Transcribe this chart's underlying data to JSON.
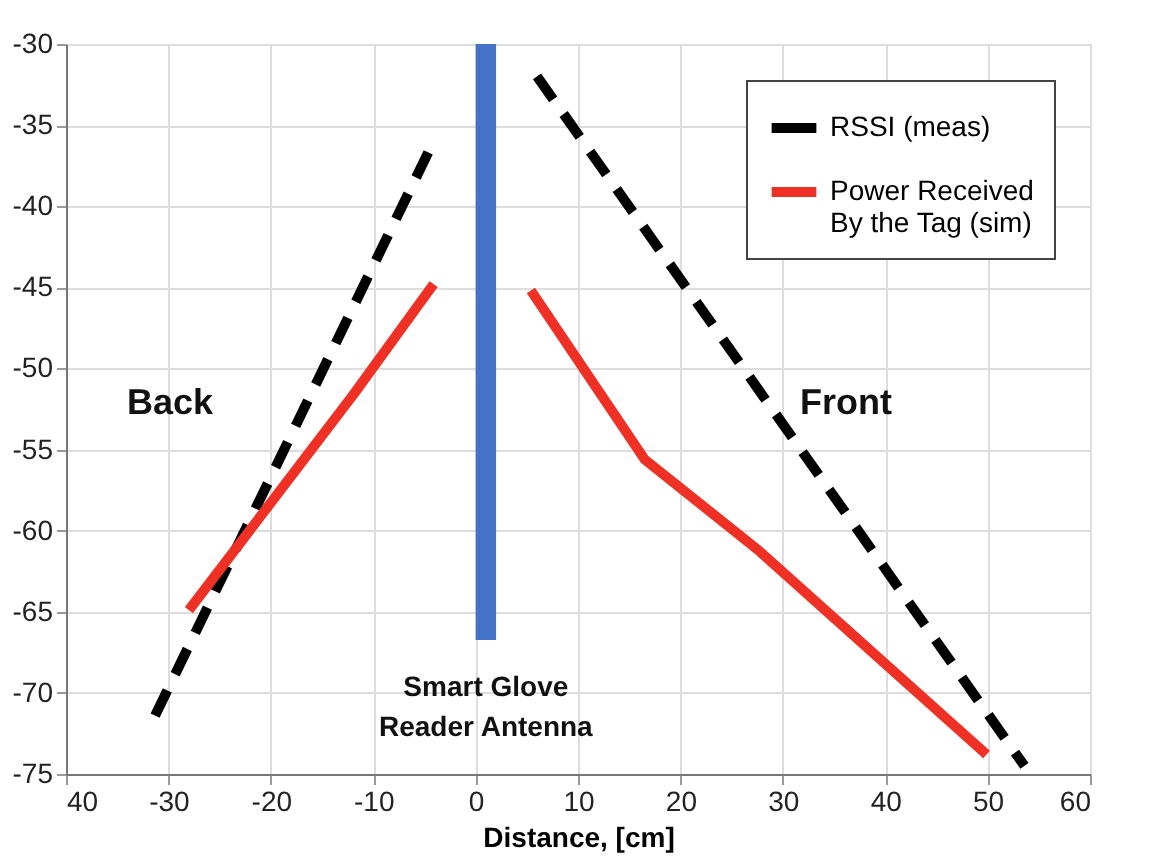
{
  "chart_data": {
    "type": "line",
    "xlabel": "Distance, [cm]",
    "xlim": [
      -40,
      60
    ],
    "xticks": [
      {
        "value": -40,
        "label": "40"
      },
      -30,
      -20,
      -10,
      0,
      10,
      20,
      30,
      40,
      50,
      60
    ],
    "ylim": [
      -75,
      -30
    ],
    "yticks": [
      -75,
      -70,
      -65,
      -60,
      -55,
      -50,
      -45,
      -40,
      -35,
      -30
    ],
    "grid": true,
    "legend": "top right",
    "series": [
      {
        "name": "RSSI (meas)",
        "color": "#000000",
        "line_style": "dashed",
        "x": [
          -31.3,
          -4.1,
          0,
          6.0,
          53.6
        ],
        "values": [
          -71.4,
          -36.0,
          null,
          -32.0,
          -74.5
        ]
      },
      {
        "name": "Power Received\nBy the Tag (sim)",
        "color": "#ee3124",
        "line_style": "solid",
        "x": [
          -28.0,
          -11.8,
          -4.1,
          0,
          5.4,
          16.5,
          27.6,
          49.9
        ],
        "values": [
          -64.9,
          -51.5,
          -44.8,
          null,
          -45.2,
          -55.6,
          -61.2,
          -73.8
        ]
      }
    ],
    "bands": [
      {
        "axis": "x",
        "from": 0,
        "to": 2,
        "label": "Smart Glove\nReader Antenna",
        "color": "#4472c4"
      }
    ],
    "annotations": [
      "Back",
      "Front"
    ]
  }
}
